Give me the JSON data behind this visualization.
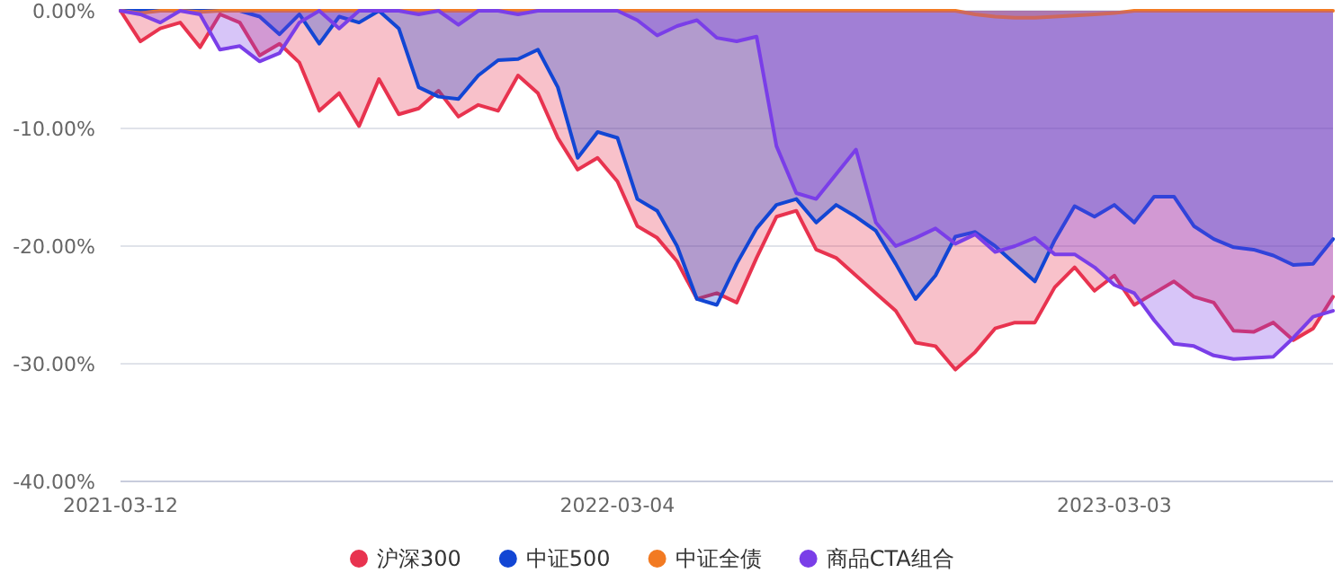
{
  "chart_data": {
    "type": "area",
    "categories": [
      "2021-03-12",
      null,
      null,
      null,
      null,
      null,
      null,
      null,
      null,
      null,
      null,
      null,
      null,
      null,
      null,
      null,
      null,
      null,
      null,
      null,
      null,
      null,
      null,
      null,
      null,
      "2022-03-04",
      null,
      null,
      null,
      null,
      null,
      null,
      null,
      null,
      null,
      null,
      null,
      null,
      null,
      null,
      null,
      null,
      null,
      null,
      null,
      null,
      null,
      null,
      null,
      null,
      "2023-03-03",
      null,
      null,
      null,
      null,
      null,
      null,
      null,
      null,
      null,
      null,
      null
    ],
    "series": [
      {
        "name": "沪深300",
        "color": "#e8334f",
        "values": [
          0,
          -2.6,
          -1.5,
          -1.0,
          -3.1,
          -0.3,
          -1.0,
          -3.8,
          -2.8,
          -4.4,
          -8.5,
          -7.0,
          -9.8,
          -5.8,
          -8.8,
          -8.3,
          -6.8,
          -9.0,
          -8.0,
          -8.5,
          -5.5,
          -7.0,
          -10.8,
          -13.5,
          -12.5,
          -14.5,
          -18.3,
          -19.3,
          -21.3,
          -24.5,
          -24.0,
          -24.8,
          -21.0,
          -17.5,
          -17.0,
          -20.3,
          -21.0,
          -22.5,
          -24.0,
          -25.5,
          -28.2,
          -28.5,
          -30.5,
          -29.0,
          -27.0,
          -26.5,
          -26.5,
          -23.5,
          -21.8,
          -23.8,
          -22.5,
          -25.0,
          -24.0,
          -23.0,
          -24.3,
          -24.8,
          -27.2,
          -27.3,
          -26.5,
          -28.0,
          -27.0,
          -24.3
        ]
      },
      {
        "name": "中证500",
        "color": "#1246d4",
        "values": [
          0,
          0,
          0,
          0,
          0,
          0,
          0,
          -0.5,
          -2.0,
          -0.3,
          -2.8,
          -0.5,
          -1.0,
          0,
          -1.5,
          -6.5,
          -7.3,
          -7.5,
          -5.5,
          -4.2,
          -4.1,
          -3.3,
          -6.5,
          -12.5,
          -10.3,
          -10.8,
          -16.0,
          -17.0,
          -20.0,
          -24.5,
          -25.0,
          -21.5,
          -18.5,
          -16.5,
          -16.0,
          -18.0,
          -16.5,
          -17.5,
          -18.7,
          -21.5,
          -24.5,
          -22.5,
          -19.2,
          -18.8,
          -20.0,
          -21.5,
          -23.0,
          -19.5,
          -16.6,
          -17.5,
          -16.5,
          -18.0,
          -15.8,
          -15.8,
          -18.3,
          -19.4,
          -20.1,
          -20.3,
          -20.8,
          -21.6,
          -21.5,
          -19.4
        ]
      },
      {
        "name": "中证全债",
        "color": "#f27a22",
        "values": [
          0,
          -0.2,
          0,
          0,
          -0.1,
          0,
          0,
          0,
          0,
          0,
          0,
          0,
          0,
          0,
          0,
          0,
          0,
          0,
          0,
          0,
          0,
          0,
          0,
          0,
          0,
          0,
          0,
          0,
          0,
          0,
          0,
          0,
          0,
          0,
          0,
          0,
          0,
          0,
          0,
          0,
          0,
          0,
          0,
          -0.3,
          -0.5,
          -0.6,
          -0.6,
          -0.5,
          -0.4,
          -0.3,
          -0.2,
          0,
          0,
          0,
          0,
          0,
          0,
          0,
          0,
          0,
          0,
          0
        ]
      },
      {
        "name": "商品CTA组合",
        "color": "#7a3ee8",
        "values": [
          0,
          -0.3,
          -1.0,
          0,
          -0.3,
          -3.3,
          -3.0,
          -4.3,
          -3.6,
          -1.0,
          0,
          -1.5,
          0,
          0,
          0,
          -0.3,
          0,
          -1.2,
          0,
          0,
          -0.3,
          0,
          0,
          0,
          0,
          0,
          -0.8,
          -2.1,
          -1.3,
          -0.8,
          -2.3,
          -2.6,
          -2.2,
          -11.5,
          -15.5,
          -16.0,
          -13.9,
          -11.8,
          -18.0,
          -20.0,
          -19.3,
          -18.5,
          -19.8,
          -19.0,
          -20.5,
          -20.0,
          -19.3,
          -20.7,
          -20.7,
          -21.8,
          -23.3,
          -24.0,
          -26.3,
          -28.3,
          -28.5,
          -29.3,
          -29.6,
          -29.5,
          -29.4,
          -27.8,
          -26.0,
          -25.5
        ]
      }
    ],
    "ylim": [
      -40,
      0
    ],
    "yticks": [
      {
        "value": 0,
        "label": "0.00%"
      },
      {
        "value": -10,
        "label": "-10.00%"
      },
      {
        "value": -20,
        "label": "-20.00%"
      },
      {
        "value": -30,
        "label": "-30.00%"
      },
      {
        "value": -40,
        "label": "-40.00%"
      }
    ],
    "grid": "y",
    "legend": "bottom"
  }
}
